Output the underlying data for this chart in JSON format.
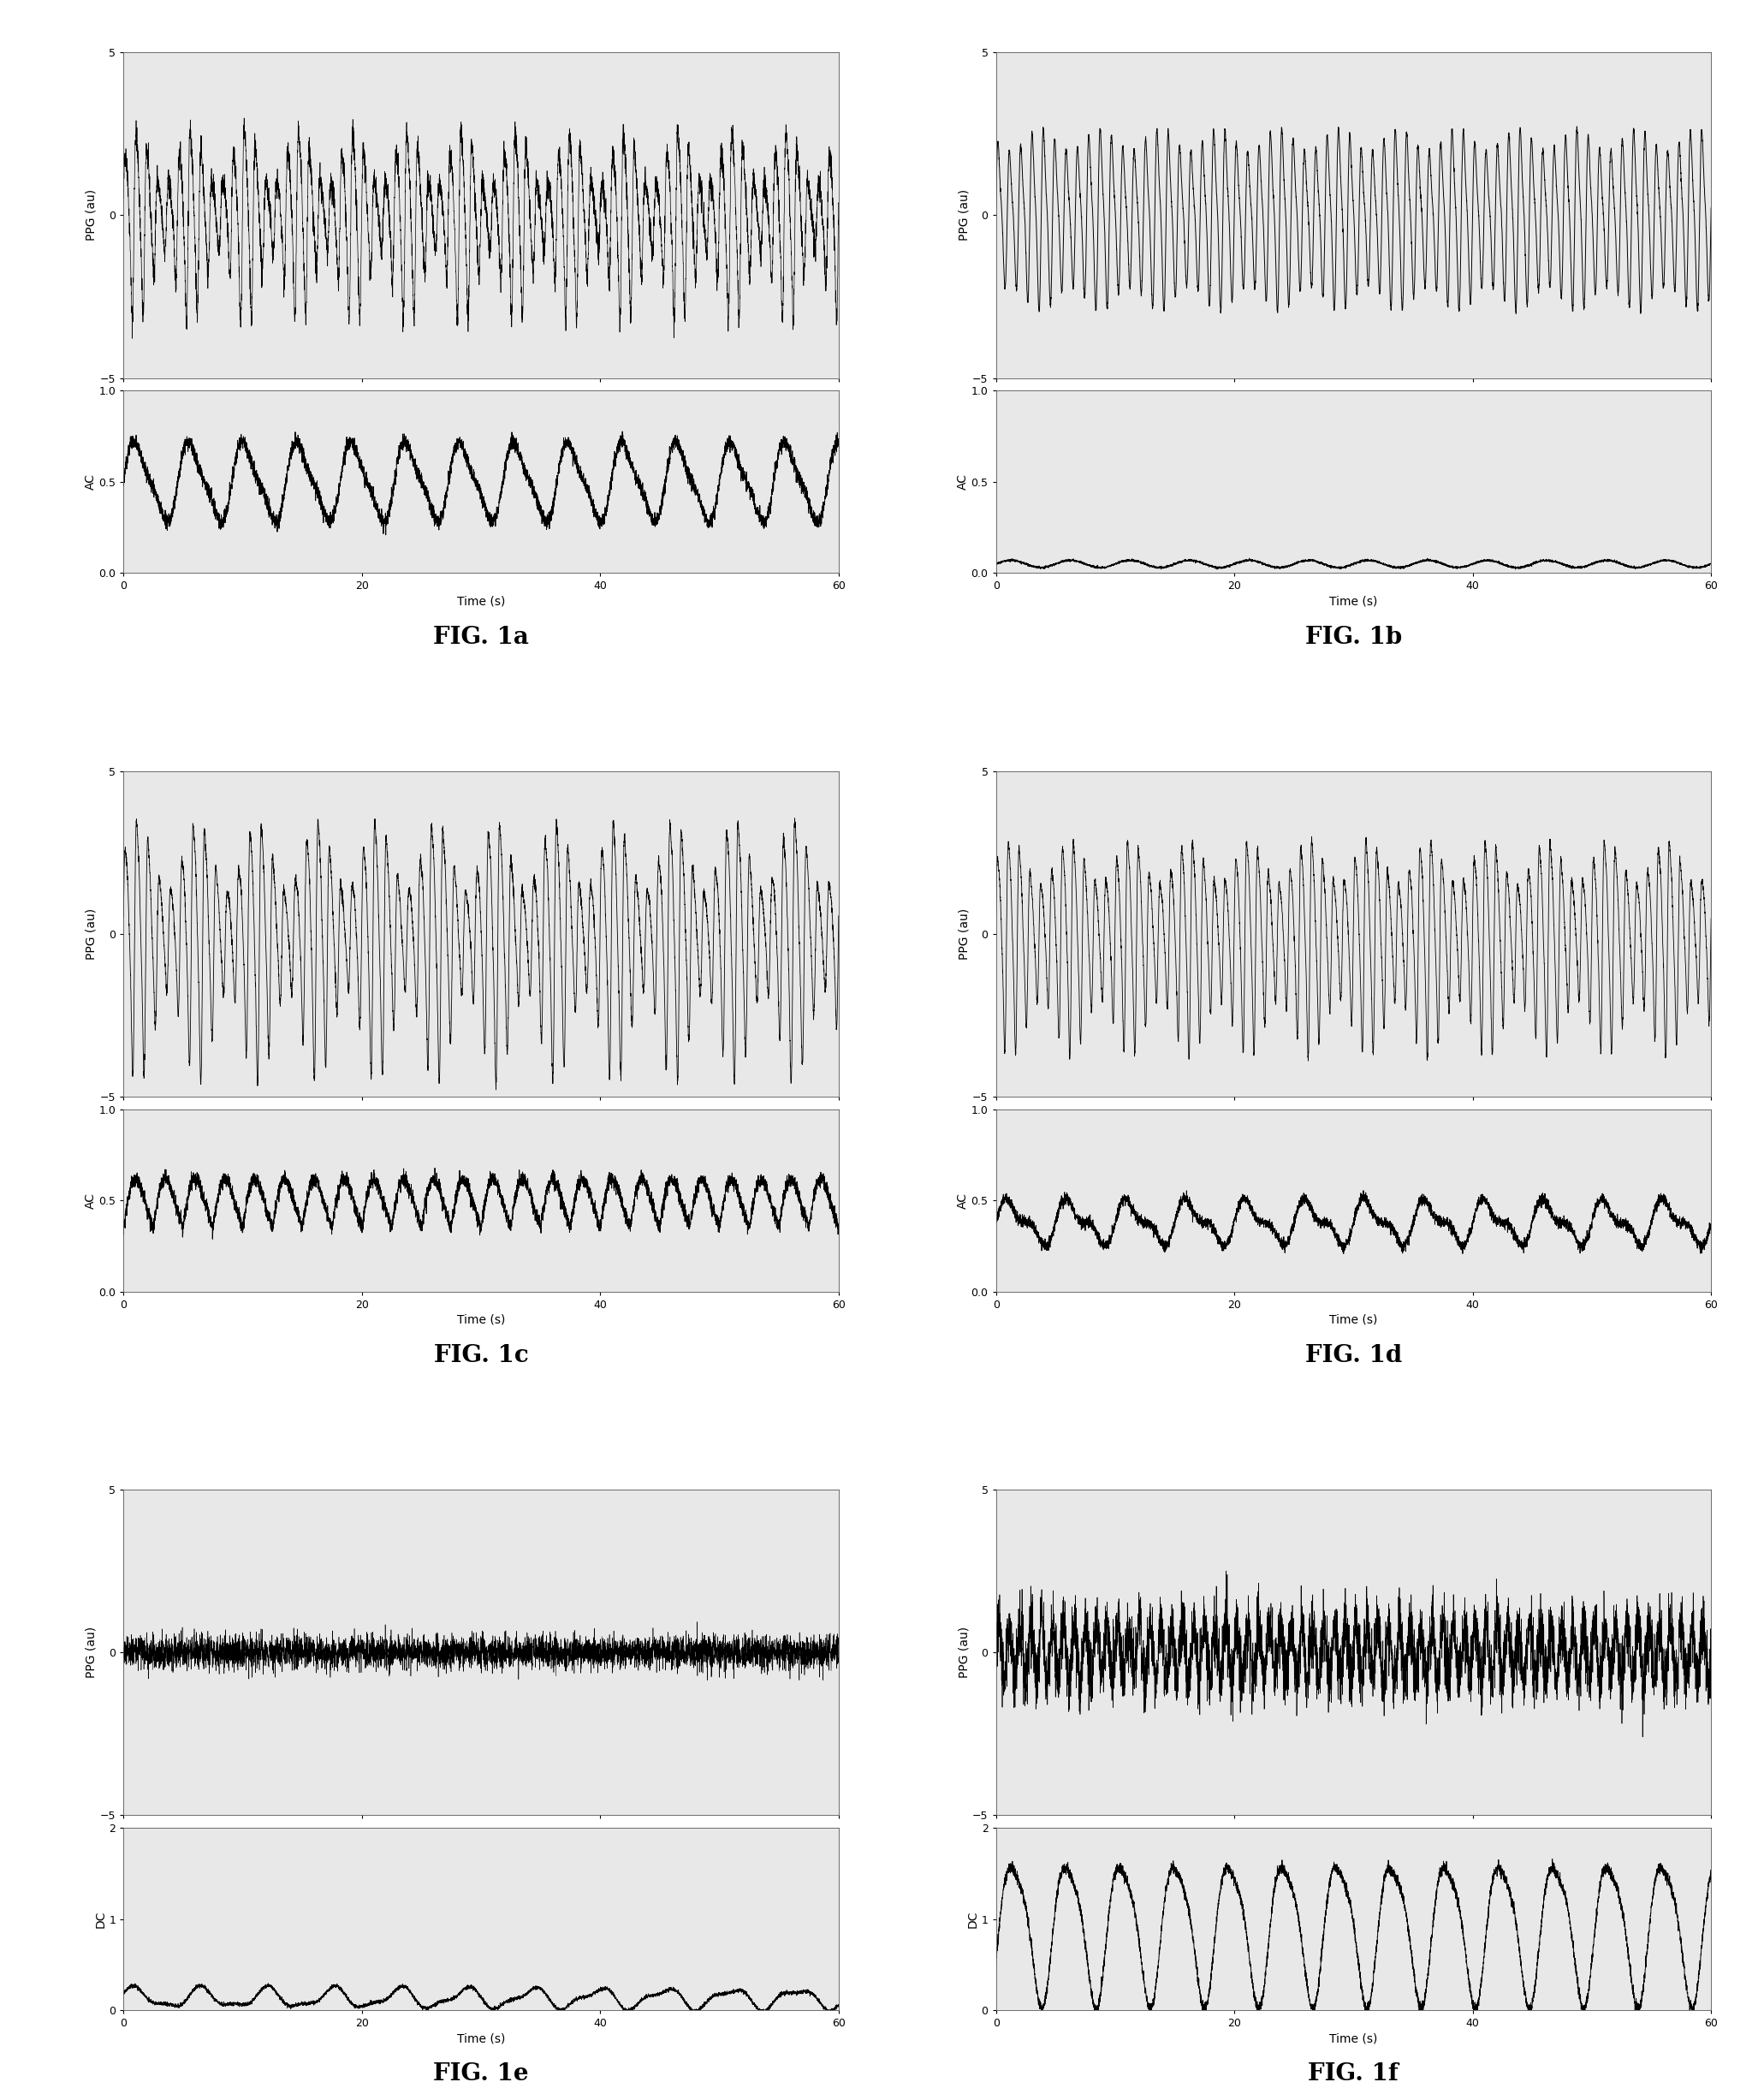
{
  "fig_labels": [
    "FIG. 1a",
    "FIG. 1b",
    "FIG. 1c",
    "FIG. 1d",
    "FIG. 1e",
    "FIG. 1f"
  ],
  "background_color": "#ffffff",
  "line_color": "#000000",
  "axes_facecolor": "#e8e8e8",
  "xlim": [
    0,
    60
  ],
  "x_ticks": [
    0,
    20,
    40,
    60
  ],
  "xlabel": "Time (s)",
  "ppg_ylim": [
    -5,
    5
  ],
  "ppg_yticks": [
    -5,
    0,
    5
  ],
  "ppg_ylabel": "PPG (au)",
  "ac_ylim": [
    0,
    1
  ],
  "ac_yticks": [
    0,
    0.5,
    1
  ],
  "ac_ylabel": "AC",
  "dc_ylim": [
    0,
    2
  ],
  "dc_yticks": [
    0,
    1,
    2
  ],
  "dc_ylabel": "DC",
  "fig_label_fontsize": 20,
  "axis_label_fontsize": 10,
  "tick_fontsize": 9,
  "seed": 42
}
